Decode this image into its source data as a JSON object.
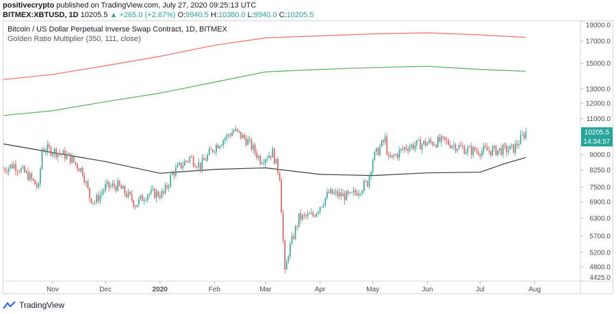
{
  "header": {
    "author": "positivecrypto",
    "published_text": "published on TradingView.com, July 27, 2020 09:25:13 UTC",
    "symbol": "BITMEX:XBTUSD, 1D",
    "last": "10205.5",
    "change": "+265.0 (+2.67%)",
    "o_label": "O:",
    "o": "9940.5",
    "h_label": "H:",
    "h": "10380.0",
    "l_label": "L:",
    "l": "9940.0",
    "c_label": "C:",
    "c": "10205.5"
  },
  "legend": {
    "title": "Bitcoin / US Dollar Perpetual Inverse Swap Contract, 1D, BITMEX",
    "indicator": "Golden Ratio Multiplier (350, 111, close)"
  },
  "footer": {
    "brand": "TradingView",
    "logo_icon": "tradingview-logo-icon"
  },
  "colors": {
    "up": "#26a69a",
    "down": "#ef5350",
    "red_band": "#ef6c64",
    "green_band": "#57b05a",
    "ma": "#3a3a3a",
    "price_tag": "#26a69a"
  },
  "chart_data": {
    "type": "candlestick",
    "y_scale": "log",
    "ylim": [
      4425,
      19000
    ],
    "y_ticks": [
      "19000.0",
      "17000.0",
      "15000.0",
      "13000.0",
      "12000.0",
      "11000.0",
      "9000.0",
      "8250.0",
      "7500.0",
      "6900.0",
      "6300.0",
      "5700.0",
      "5200.0",
      "4800.0",
      "4425.0"
    ],
    "x_ticks": [
      {
        "label": "Nov",
        "date": "2019-11-01"
      },
      {
        "label": "Dec",
        "date": "2019-12-01"
      },
      {
        "label": "2020",
        "date": "2020-01-01"
      },
      {
        "label": "Feb",
        "date": "2020-02-01"
      },
      {
        "label": "Mar",
        "date": "2020-03-01"
      },
      {
        "label": "Apr",
        "date": "2020-04-01"
      },
      {
        "label": "May",
        "date": "2020-05-01"
      },
      {
        "label": "Jun",
        "date": "2020-06-01"
      },
      {
        "label": "Jul",
        "date": "2020-07-01"
      },
      {
        "label": "Aug",
        "date": "2020-08-01"
      }
    ],
    "x_range": [
      "2019-10-04",
      "2020-08-27"
    ],
    "last_price_label": "10205.5",
    "countdown_label": "14:34:57",
    "price_anchors": [
      [
        "2019-10-04",
        8300
      ],
      [
        "2019-10-10",
        8500
      ],
      [
        "2019-10-18",
        8000
      ],
      [
        "2019-10-24",
        7450
      ],
      [
        "2019-10-26",
        9300
      ],
      [
        "2019-11-01",
        9200
      ],
      [
        "2019-11-10",
        8900
      ],
      [
        "2019-11-18",
        8200
      ],
      [
        "2019-11-22",
        7100
      ],
      [
        "2019-11-25",
        6900
      ],
      [
        "2019-12-01",
        7500
      ],
      [
        "2019-12-08",
        7550
      ],
      [
        "2019-12-16",
        7000
      ],
      [
        "2019-12-18",
        6800
      ],
      [
        "2019-12-25",
        7250
      ],
      [
        "2020-01-03",
        7200
      ],
      [
        "2020-01-08",
        8100
      ],
      [
        "2020-01-18",
        8850
      ],
      [
        "2020-01-24",
        8450
      ],
      [
        "2020-02-01",
        9400
      ],
      [
        "2020-02-12",
        10300
      ],
      [
        "2020-02-20",
        9700
      ],
      [
        "2020-02-27",
        8750
      ],
      [
        "2020-03-05",
        9100
      ],
      [
        "2020-03-09",
        8000
      ],
      [
        "2020-03-12",
        4600
      ],
      [
        "2020-03-14",
        5200
      ],
      [
        "2020-03-20",
        6300
      ],
      [
        "2020-03-28",
        6400
      ],
      [
        "2020-04-06",
        7250
      ],
      [
        "2020-04-18",
        7100
      ],
      [
        "2020-04-28",
        7700
      ],
      [
        "2020-05-01",
        8800
      ],
      [
        "2020-05-08",
        9800
      ],
      [
        "2020-05-10",
        8700
      ],
      [
        "2020-05-20",
        9400
      ],
      [
        "2020-06-01",
        9600
      ],
      [
        "2020-06-10",
        9700
      ],
      [
        "2020-06-25",
        9200
      ],
      [
        "2020-07-10",
        9200
      ],
      [
        "2020-07-20",
        9300
      ],
      [
        "2020-07-27",
        10205.5
      ]
    ],
    "series": [
      {
        "name": "",
        "type": "line",
        "color": "#ef6c64",
        "points": [
          [
            "2019-10-04",
            13700
          ],
          [
            "2019-11-01",
            14100
          ],
          [
            "2019-12-01",
            14800
          ],
          [
            "2020-01-01",
            15600
          ],
          [
            "2020-02-01",
            16600
          ],
          [
            "2020-03-01",
            17300
          ],
          [
            "2020-04-01",
            17500
          ],
          [
            "2020-05-01",
            17700
          ],
          [
            "2020-06-01",
            17800
          ],
          [
            "2020-07-01",
            17600
          ],
          [
            "2020-07-27",
            17350
          ]
        ]
      },
      {
        "name": "",
        "type": "line",
        "color": "#57b05a",
        "points": [
          [
            "2019-10-04",
            11200
          ],
          [
            "2019-11-01",
            11500
          ],
          [
            "2019-12-01",
            12100
          ],
          [
            "2020-01-01",
            12700
          ],
          [
            "2020-02-01",
            13500
          ],
          [
            "2020-03-01",
            14300
          ],
          [
            "2020-04-01",
            14500
          ],
          [
            "2020-05-01",
            14650
          ],
          [
            "2020-06-01",
            14750
          ],
          [
            "2020-07-01",
            14500
          ],
          [
            "2020-07-27",
            14350
          ]
        ]
      },
      {
        "name": "",
        "type": "line",
        "color": "#3a3a3a",
        "points": [
          [
            "2019-10-04",
            9550
          ],
          [
            "2019-11-01",
            9100
          ],
          [
            "2019-12-01",
            8650
          ],
          [
            "2020-01-01",
            8100
          ],
          [
            "2020-02-01",
            8280
          ],
          [
            "2020-03-01",
            8350
          ],
          [
            "2020-04-01",
            8050
          ],
          [
            "2020-05-01",
            8000
          ],
          [
            "2020-06-01",
            8120
          ],
          [
            "2020-07-01",
            8150
          ],
          [
            "2020-07-15",
            8550
          ],
          [
            "2020-07-27",
            8850
          ]
        ]
      }
    ]
  }
}
